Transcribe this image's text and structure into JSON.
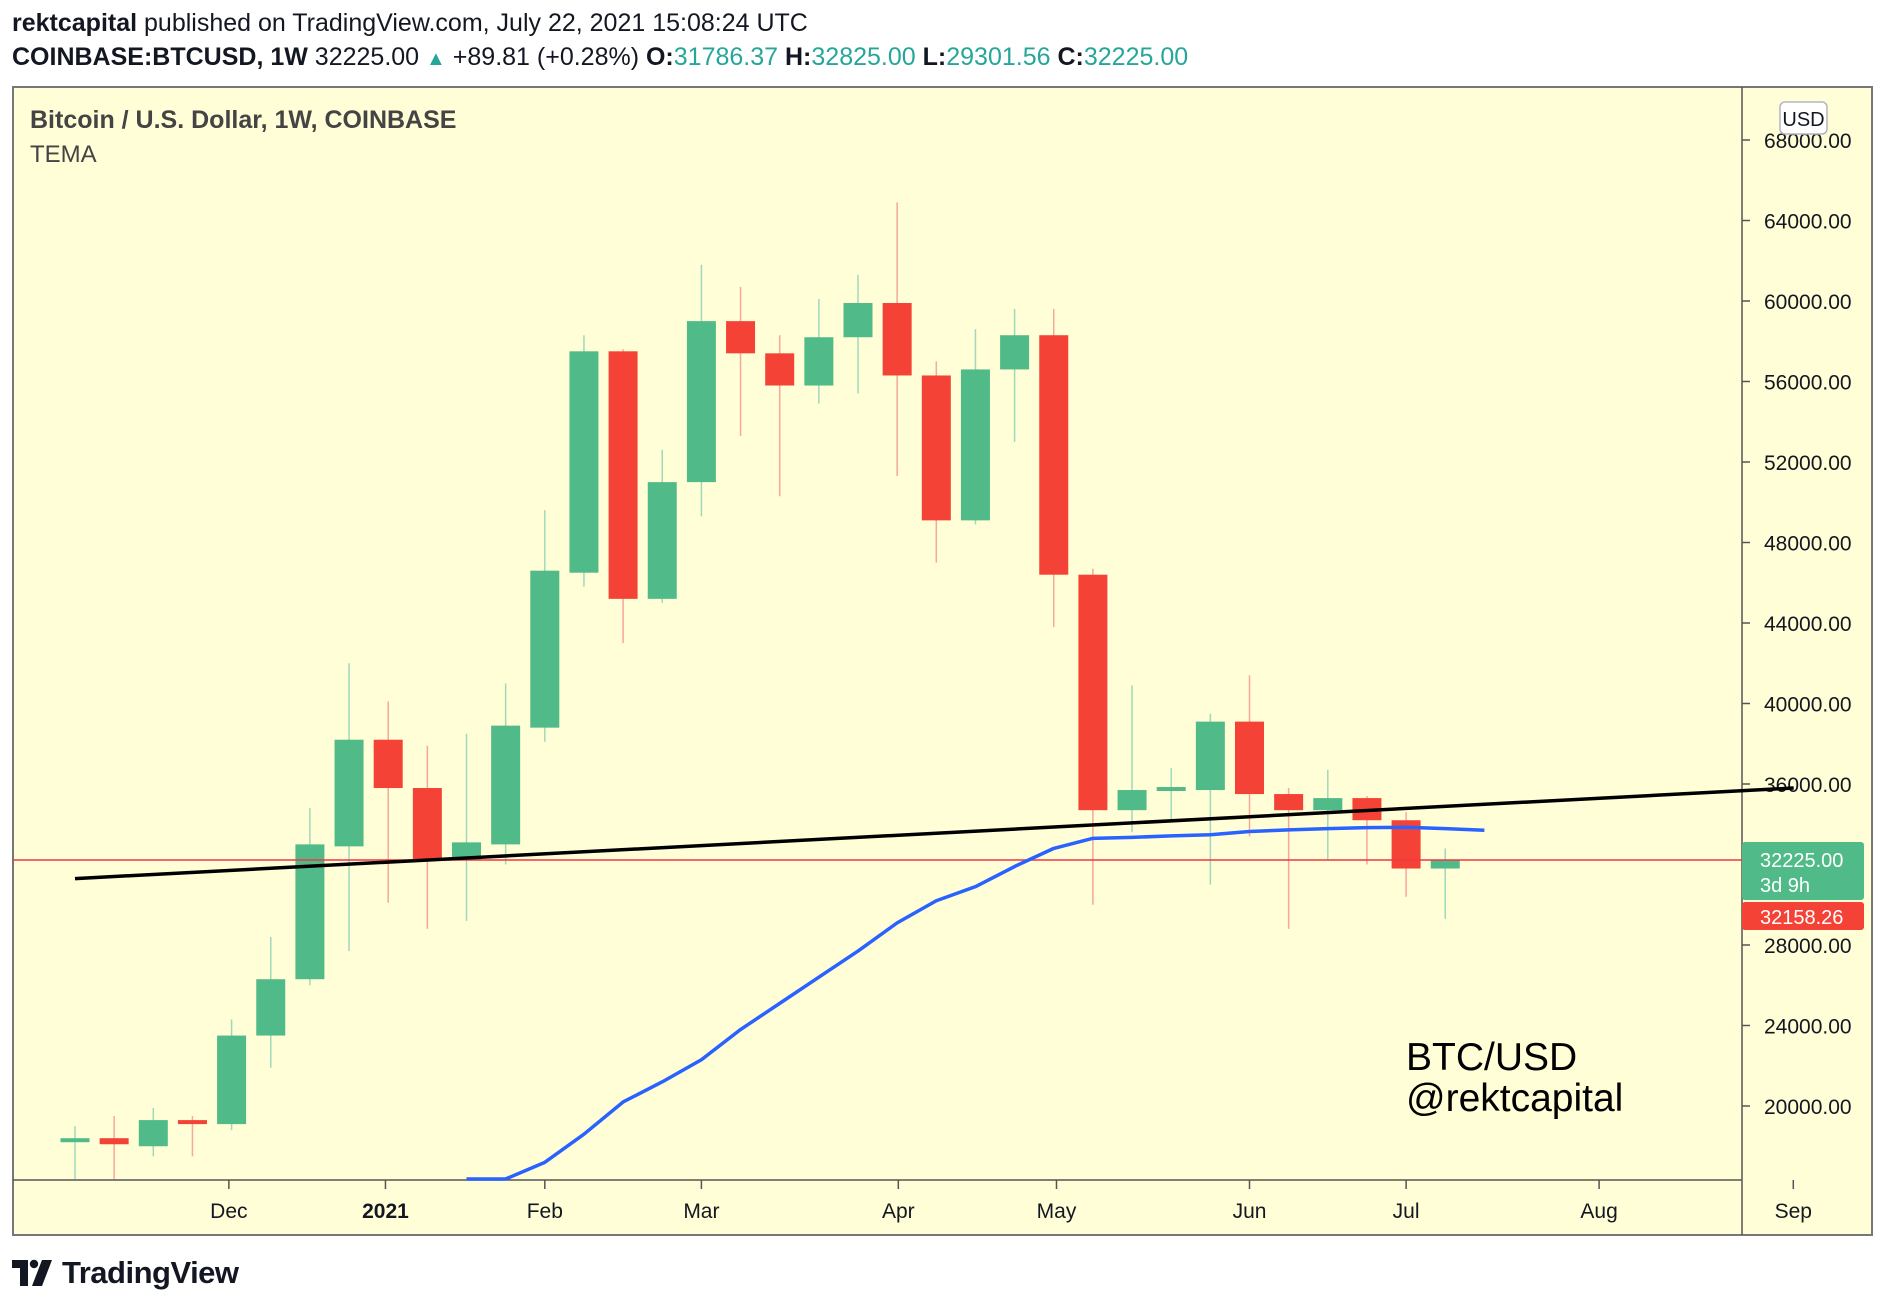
{
  "header": {
    "author": "rektcapital",
    "published_text": "published on TradingView.com, July 22, 2021 15:08:24 UTC",
    "symbol": "COINBASE:BTCUSD, 1W",
    "last": "32225.00",
    "change": "+89.81 (+0.28%)",
    "o_label": "O:",
    "o_value": "31786.37",
    "h_label": "H:",
    "h_value": "32825.00",
    "l_label": "L:",
    "l_value": "29301.56",
    "c_label": "C:",
    "c_value": "32225.00"
  },
  "chart_legend": {
    "title": "Bitcoin / U.S. Dollar, 1W, COINBASE",
    "indicator": "TEMA"
  },
  "watermark": {
    "line1": "BTC/USD",
    "line2": "@rektcapital"
  },
  "currency_button": "USD",
  "price_badges": {
    "last_price": "32225.00",
    "countdown": "3d 9h",
    "other_price": "32158.26"
  },
  "footer": {
    "brand": "TradingView"
  },
  "colors": {
    "background": "#fffed6",
    "up": "#50bb88",
    "down": "#f44336",
    "tema": "#2962ff",
    "trendline": "#000000",
    "price_line": "#f23645"
  },
  "chart_data": {
    "type": "candlestick",
    "title": "Bitcoin / U.S. Dollar, 1W, COINBASE",
    "ylim": [
      15500,
      70000
    ],
    "yticks": [
      20000,
      24000,
      28000,
      36000,
      40000,
      44000,
      48000,
      52000,
      56000,
      60000,
      64000,
      68000
    ],
    "ytick_labels": [
      "20000.00",
      "24000.00",
      "28000.00",
      "36000.00",
      "40000.00",
      "44000.00",
      "48000.00",
      "52000.00",
      "56000.00",
      "60000.00",
      "64000.00",
      "68000.00"
    ],
    "xticks": [
      {
        "label": "Dec",
        "bold": false,
        "week": 3.93
      },
      {
        "label": "2021",
        "bold": true,
        "week": 7.93
      },
      {
        "label": "Feb",
        "bold": false,
        "week": 12.0
      },
      {
        "label": "Mar",
        "bold": false,
        "week": 16.0
      },
      {
        "label": "Apr",
        "bold": false,
        "week": 21.03
      },
      {
        "label": "May",
        "bold": false,
        "week": 25.07
      },
      {
        "label": "Jun",
        "bold": false,
        "week": 30.0
      },
      {
        "label": "Jul",
        "bold": false,
        "week": 34.0
      },
      {
        "label": "Aug",
        "bold": false,
        "week": 38.93
      },
      {
        "label": "Sep",
        "bold": false,
        "week": 43.89
      }
    ],
    "candles": [
      {
        "o": 18200,
        "h": 19000,
        "l": 15600,
        "c": 18400
      },
      {
        "o": 18400,
        "h": 19500,
        "l": 16000,
        "c": 18100
      },
      {
        "o": 18000,
        "h": 19900,
        "l": 17500,
        "c": 19300
      },
      {
        "o": 19300,
        "h": 19500,
        "l": 17500,
        "c": 19100
      },
      {
        "o": 19100,
        "h": 24300,
        "l": 18800,
        "c": 23500
      },
      {
        "o": 23500,
        "h": 28400,
        "l": 21900,
        "c": 26300
      },
      {
        "o": 26300,
        "h": 34800,
        "l": 26000,
        "c": 33000
      },
      {
        "o": 32900,
        "h": 42000,
        "l": 27700,
        "c": 38200
      },
      {
        "o": 38200,
        "h": 40100,
        "l": 30100,
        "c": 35800
      },
      {
        "o": 35800,
        "h": 37900,
        "l": 28800,
        "c": 32200
      },
      {
        "o": 32200,
        "h": 38500,
        "l": 29200,
        "c": 33100
      },
      {
        "o": 33000,
        "h": 41000,
        "l": 32000,
        "c": 38900
      },
      {
        "o": 38800,
        "h": 49600,
        "l": 38100,
        "c": 46600
      },
      {
        "o": 46500,
        "h": 58300,
        "l": 45800,
        "c": 57500
      },
      {
        "o": 57500,
        "h": 57600,
        "l": 43000,
        "c": 45200
      },
      {
        "o": 45200,
        "h": 52600,
        "l": 45000,
        "c": 51000
      },
      {
        "o": 51000,
        "h": 61800,
        "l": 49300,
        "c": 59000
      },
      {
        "o": 59000,
        "h": 60700,
        "l": 53300,
        "c": 57400
      },
      {
        "o": 57400,
        "h": 58300,
        "l": 50300,
        "c": 55800
      },
      {
        "o": 55800,
        "h": 60100,
        "l": 54900,
        "c": 58200
      },
      {
        "o": 58200,
        "h": 61300,
        "l": 55400,
        "c": 59900
      },
      {
        "o": 59900,
        "h": 64900,
        "l": 51300,
        "c": 56300
      },
      {
        "o": 56300,
        "h": 57000,
        "l": 47000,
        "c": 49100
      },
      {
        "o": 49100,
        "h": 58600,
        "l": 48900,
        "c": 56600
      },
      {
        "o": 56600,
        "h": 59600,
        "l": 53000,
        "c": 58300
      },
      {
        "o": 58300,
        "h": 59600,
        "l": 43800,
        "c": 46400
      },
      {
        "o": 46400,
        "h": 46700,
        "l": 30000,
        "c": 34700
      },
      {
        "o": 34700,
        "h": 40900,
        "l": 33600,
        "c": 35700
      },
      {
        "o": 35700,
        "h": 36800,
        "l": 34200,
        "c": 35800
      },
      {
        "o": 35700,
        "h": 39500,
        "l": 31000,
        "c": 39100
      },
      {
        "o": 39100,
        "h": 41400,
        "l": 33400,
        "c": 35500
      },
      {
        "o": 35500,
        "h": 35800,
        "l": 28800,
        "c": 34700
      },
      {
        "o": 34700,
        "h": 36700,
        "l": 32200,
        "c": 35300
      },
      {
        "o": 35300,
        "h": 35400,
        "l": 32000,
        "c": 34200
      },
      {
        "o": 34200,
        "h": 34600,
        "l": 30400,
        "c": 31800
      },
      {
        "o": 31800,
        "h": 32800,
        "l": 29300,
        "c": 32200
      }
    ],
    "tema": [
      {
        "week": 10.0,
        "value": 15500
      },
      {
        "week": 11.0,
        "value": 16100
      },
      {
        "week": 12.0,
        "value": 17200
      },
      {
        "week": 13.0,
        "value": 18600
      },
      {
        "week": 14.0,
        "value": 20200
      },
      {
        "week": 15.0,
        "value": 21200
      },
      {
        "week": 16.0,
        "value": 22300
      },
      {
        "week": 17.0,
        "value": 23800
      },
      {
        "week": 18.0,
        "value": 25100
      },
      {
        "week": 19.0,
        "value": 26400
      },
      {
        "week": 20.0,
        "value": 27700
      },
      {
        "week": 21.0,
        "value": 29100
      },
      {
        "week": 22.0,
        "value": 30200
      },
      {
        "week": 23.0,
        "value": 30900
      },
      {
        "week": 24.0,
        "value": 31900
      },
      {
        "week": 25.0,
        "value": 32800
      },
      {
        "week": 26.0,
        "value": 33300
      },
      {
        "week": 27.0,
        "value": 33350
      },
      {
        "week": 28.0,
        "value": 33420
      },
      {
        "week": 29.0,
        "value": 33480
      },
      {
        "week": 30.0,
        "value": 33640
      },
      {
        "week": 31.0,
        "value": 33720
      },
      {
        "week": 32.0,
        "value": 33780
      },
      {
        "week": 33.0,
        "value": 33830
      },
      {
        "week": 34.0,
        "value": 33850
      },
      {
        "week": 35.0,
        "value": 33780
      },
      {
        "week": 36.0,
        "value": 33700
      }
    ],
    "trendline": [
      {
        "week": 0.0,
        "value": 31300
      },
      {
        "week": 43.9,
        "value": 35800
      }
    ],
    "price_line": 32225
  }
}
